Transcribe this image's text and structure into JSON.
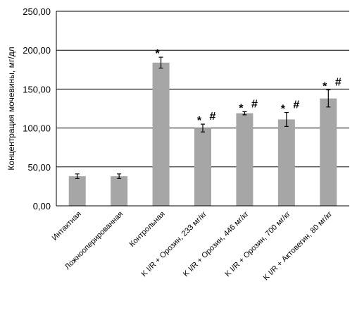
{
  "chart_data": {
    "type": "bar",
    "title": "",
    "xlabel": "",
    "ylabel": "Концентрация мочевины, мг/дл",
    "ylim": [
      0,
      250
    ],
    "yticks": [
      "0,00",
      "50,00",
      "100,00",
      "150,00",
      "200,00",
      "250,00"
    ],
    "grid": true,
    "legend": "none",
    "categories": [
      "Интактная",
      "Ложнооперированная",
      "Контрольная",
      "K I/R + Орозин, 233 мг/кг",
      "K I/R + Орозин, 446 мг/кг",
      "K I/R + Орозин, 700 мг/кг",
      "K I/R + Актовегин, 80 мг/кг"
    ],
    "values": [
      38,
      38,
      184,
      100,
      119,
      111,
      138
    ],
    "errors": [
      3,
      3,
      7,
      5,
      2,
      9,
      11
    ],
    "significance": [
      [],
      [],
      [
        "*"
      ],
      [
        "*",
        "#"
      ],
      [
        "*",
        "#"
      ],
      [
        "*",
        "#"
      ],
      [
        "*",
        "#"
      ]
    ],
    "colors": {
      "bar": "#a6a6a6",
      "grid": "#000000",
      "axis": "#000000",
      "text": "#000000"
    }
  }
}
